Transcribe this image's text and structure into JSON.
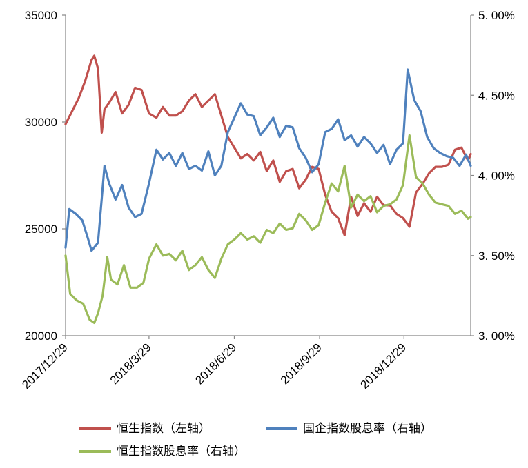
{
  "chart_data": {
    "type": "line",
    "x_ticks": [
      "2017/12/29",
      "2018/3/29",
      "2018/6/29",
      "2018/9/29",
      "2018/12/29"
    ],
    "left_axis": {
      "min": 20000,
      "max": 35000,
      "ticks": [
        "20000",
        "25000",
        "30000",
        "35000"
      ]
    },
    "right_axis": {
      "min": 3.0,
      "max": 5.0,
      "ticks": [
        "3.00%",
        "3.50%",
        "4.00%",
        "4.50%",
        "5.00%"
      ]
    },
    "x_range": [
      "2017-12-29",
      "2019-03-11"
    ],
    "series": [
      {
        "name": "恒生指数（左轴）",
        "axis": "left",
        "color": "#c0504d",
        "points": [
          [
            "2017-12-29",
            29900
          ],
          [
            "2018-01-05",
            30500
          ],
          [
            "2018-01-12",
            31100
          ],
          [
            "2018-01-19",
            31900
          ],
          [
            "2018-01-26",
            32900
          ],
          [
            "2018-01-29",
            33100
          ],
          [
            "2018-02-02",
            32500
          ],
          [
            "2018-02-06",
            29500
          ],
          [
            "2018-02-09",
            30600
          ],
          [
            "2018-02-14",
            30900
          ],
          [
            "2018-02-21",
            31400
          ],
          [
            "2018-02-28",
            30400
          ],
          [
            "2018-03-07",
            30800
          ],
          [
            "2018-03-14",
            31600
          ],
          [
            "2018-03-21",
            31500
          ],
          [
            "2018-03-29",
            30400
          ],
          [
            "2018-04-06",
            30200
          ],
          [
            "2018-04-13",
            30700
          ],
          [
            "2018-04-20",
            30300
          ],
          [
            "2018-04-27",
            30300
          ],
          [
            "2018-05-04",
            30500
          ],
          [
            "2018-05-11",
            31000
          ],
          [
            "2018-05-18",
            31300
          ],
          [
            "2018-05-25",
            30700
          ],
          [
            "2018-06-01",
            31000
          ],
          [
            "2018-06-08",
            31300
          ],
          [
            "2018-06-15",
            30300
          ],
          [
            "2018-06-22",
            29300
          ],
          [
            "2018-06-29",
            28800
          ],
          [
            "2018-07-06",
            28300
          ],
          [
            "2018-07-13",
            28500
          ],
          [
            "2018-07-20",
            28200
          ],
          [
            "2018-07-27",
            28600
          ],
          [
            "2018-08-03",
            27700
          ],
          [
            "2018-08-10",
            28200
          ],
          [
            "2018-08-17",
            27200
          ],
          [
            "2018-08-24",
            27700
          ],
          [
            "2018-08-31",
            27800
          ],
          [
            "2018-09-07",
            26900
          ],
          [
            "2018-09-14",
            27300
          ],
          [
            "2018-09-21",
            27900
          ],
          [
            "2018-09-28",
            27800
          ],
          [
            "2018-10-05",
            26600
          ],
          [
            "2018-10-12",
            25800
          ],
          [
            "2018-10-19",
            25500
          ],
          [
            "2018-10-26",
            24700
          ],
          [
            "2018-11-02",
            26500
          ],
          [
            "2018-11-09",
            25600
          ],
          [
            "2018-11-16",
            26200
          ],
          [
            "2018-11-23",
            25800
          ],
          [
            "2018-11-30",
            26500
          ],
          [
            "2018-12-07",
            26100
          ],
          [
            "2018-12-14",
            26100
          ],
          [
            "2018-12-21",
            25700
          ],
          [
            "2018-12-28",
            25500
          ],
          [
            "2019-01-04",
            25100
          ],
          [
            "2019-01-11",
            26700
          ],
          [
            "2019-01-18",
            27100
          ],
          [
            "2019-01-25",
            27600
          ],
          [
            "2019-02-01",
            27900
          ],
          [
            "2019-02-08",
            27900
          ],
          [
            "2019-02-15",
            28000
          ],
          [
            "2019-02-22",
            28700
          ],
          [
            "2019-03-01",
            28800
          ],
          [
            "2019-03-08",
            28200
          ],
          [
            "2019-03-11",
            28500
          ]
        ]
      },
      {
        "name": "国企指数股息率（右轴）",
        "axis": "right",
        "color": "#4f81bd",
        "points": [
          [
            "2017-12-29",
            3.55
          ],
          [
            "2018-01-02",
            3.79
          ],
          [
            "2018-01-09",
            3.76
          ],
          [
            "2018-01-16",
            3.72
          ],
          [
            "2018-01-23",
            3.59
          ],
          [
            "2018-01-26",
            3.53
          ],
          [
            "2018-02-02",
            3.58
          ],
          [
            "2018-02-09",
            4.06
          ],
          [
            "2018-02-14",
            3.95
          ],
          [
            "2018-02-21",
            3.85
          ],
          [
            "2018-02-28",
            3.94
          ],
          [
            "2018-03-07",
            3.8
          ],
          [
            "2018-03-14",
            3.74
          ],
          [
            "2018-03-21",
            3.76
          ],
          [
            "2018-03-29",
            3.95
          ],
          [
            "2018-04-06",
            4.16
          ],
          [
            "2018-04-13",
            4.1
          ],
          [
            "2018-04-20",
            4.14
          ],
          [
            "2018-04-27",
            4.06
          ],
          [
            "2018-05-04",
            4.14
          ],
          [
            "2018-05-11",
            4.04
          ],
          [
            "2018-05-18",
            4.06
          ],
          [
            "2018-05-25",
            4.03
          ],
          [
            "2018-06-01",
            4.15
          ],
          [
            "2018-06-08",
            4.0
          ],
          [
            "2018-06-15",
            4.06
          ],
          [
            "2018-06-22",
            4.27
          ],
          [
            "2018-06-29",
            4.36
          ],
          [
            "2018-07-06",
            4.45
          ],
          [
            "2018-07-13",
            4.38
          ],
          [
            "2018-07-20",
            4.37
          ],
          [
            "2018-07-27",
            4.25
          ],
          [
            "2018-08-03",
            4.3
          ],
          [
            "2018-08-10",
            4.36
          ],
          [
            "2018-08-17",
            4.24
          ],
          [
            "2018-08-24",
            4.31
          ],
          [
            "2018-08-31",
            4.3
          ],
          [
            "2018-09-07",
            4.17
          ],
          [
            "2018-09-14",
            4.11
          ],
          [
            "2018-09-21",
            4.02
          ],
          [
            "2018-09-28",
            4.07
          ],
          [
            "2018-10-05",
            4.27
          ],
          [
            "2018-10-12",
            4.29
          ],
          [
            "2018-10-19",
            4.35
          ],
          [
            "2018-10-26",
            4.22
          ],
          [
            "2018-11-02",
            4.25
          ],
          [
            "2018-11-09",
            4.18
          ],
          [
            "2018-11-16",
            4.24
          ],
          [
            "2018-11-23",
            4.2
          ],
          [
            "2018-11-30",
            4.14
          ],
          [
            "2018-12-07",
            4.19
          ],
          [
            "2018-12-14",
            4.07
          ],
          [
            "2018-12-21",
            4.16
          ],
          [
            "2018-12-28",
            4.2
          ],
          [
            "2019-01-02",
            4.66
          ],
          [
            "2019-01-09",
            4.47
          ],
          [
            "2019-01-16",
            4.4
          ],
          [
            "2019-01-23",
            4.24
          ],
          [
            "2019-01-30",
            4.17
          ],
          [
            "2019-02-06",
            4.14
          ],
          [
            "2019-02-13",
            4.12
          ],
          [
            "2019-02-20",
            4.11
          ],
          [
            "2019-02-27",
            4.06
          ],
          [
            "2019-03-06",
            4.13
          ],
          [
            "2019-03-11",
            4.06
          ]
        ]
      },
      {
        "name": "恒生指数股息率（右轴）",
        "axis": "right",
        "color": "#9bbb59",
        "points": [
          [
            "2017-12-29",
            3.5
          ],
          [
            "2018-01-03",
            3.26
          ],
          [
            "2018-01-10",
            3.22
          ],
          [
            "2018-01-17",
            3.2
          ],
          [
            "2018-01-24",
            3.1
          ],
          [
            "2018-01-29",
            3.08
          ],
          [
            "2018-02-02",
            3.14
          ],
          [
            "2018-02-07",
            3.25
          ],
          [
            "2018-02-12",
            3.49
          ],
          [
            "2018-02-16",
            3.35
          ],
          [
            "2018-02-23",
            3.32
          ],
          [
            "2018-03-02",
            3.44
          ],
          [
            "2018-03-09",
            3.3
          ],
          [
            "2018-03-16",
            3.3
          ],
          [
            "2018-03-23",
            3.33
          ],
          [
            "2018-03-29",
            3.48
          ],
          [
            "2018-04-06",
            3.57
          ],
          [
            "2018-04-13",
            3.5
          ],
          [
            "2018-04-20",
            3.51
          ],
          [
            "2018-04-27",
            3.47
          ],
          [
            "2018-05-04",
            3.53
          ],
          [
            "2018-05-11",
            3.41
          ],
          [
            "2018-05-18",
            3.44
          ],
          [
            "2018-05-25",
            3.49
          ],
          [
            "2018-06-01",
            3.41
          ],
          [
            "2018-06-08",
            3.36
          ],
          [
            "2018-06-15",
            3.48
          ],
          [
            "2018-06-22",
            3.57
          ],
          [
            "2018-06-29",
            3.6
          ],
          [
            "2018-07-06",
            3.64
          ],
          [
            "2018-07-13",
            3.6
          ],
          [
            "2018-07-20",
            3.62
          ],
          [
            "2018-07-27",
            3.58
          ],
          [
            "2018-08-03",
            3.66
          ],
          [
            "2018-08-10",
            3.64
          ],
          [
            "2018-08-17",
            3.7
          ],
          [
            "2018-08-24",
            3.66
          ],
          [
            "2018-08-31",
            3.67
          ],
          [
            "2018-09-07",
            3.76
          ],
          [
            "2018-09-14",
            3.72
          ],
          [
            "2018-09-21",
            3.66
          ],
          [
            "2018-09-28",
            3.69
          ],
          [
            "2018-10-05",
            3.83
          ],
          [
            "2018-10-12",
            3.95
          ],
          [
            "2018-10-19",
            3.9
          ],
          [
            "2018-10-26",
            4.06
          ],
          [
            "2018-11-02",
            3.8
          ],
          [
            "2018-11-09",
            3.88
          ],
          [
            "2018-11-16",
            3.84
          ],
          [
            "2018-11-23",
            3.87
          ],
          [
            "2018-11-30",
            3.77
          ],
          [
            "2018-12-07",
            3.81
          ],
          [
            "2018-12-14",
            3.82
          ],
          [
            "2018-12-21",
            3.85
          ],
          [
            "2018-12-28",
            3.94
          ],
          [
            "2019-01-04",
            4.25
          ],
          [
            "2019-01-11",
            3.99
          ],
          [
            "2019-01-18",
            3.95
          ],
          [
            "2019-01-25",
            3.88
          ],
          [
            "2019-02-01",
            3.83
          ],
          [
            "2019-02-08",
            3.82
          ],
          [
            "2019-02-15",
            3.81
          ],
          [
            "2019-02-22",
            3.76
          ],
          [
            "2019-03-01",
            3.78
          ],
          [
            "2019-03-08",
            3.73
          ],
          [
            "2019-03-11",
            3.74
          ]
        ]
      }
    ]
  }
}
